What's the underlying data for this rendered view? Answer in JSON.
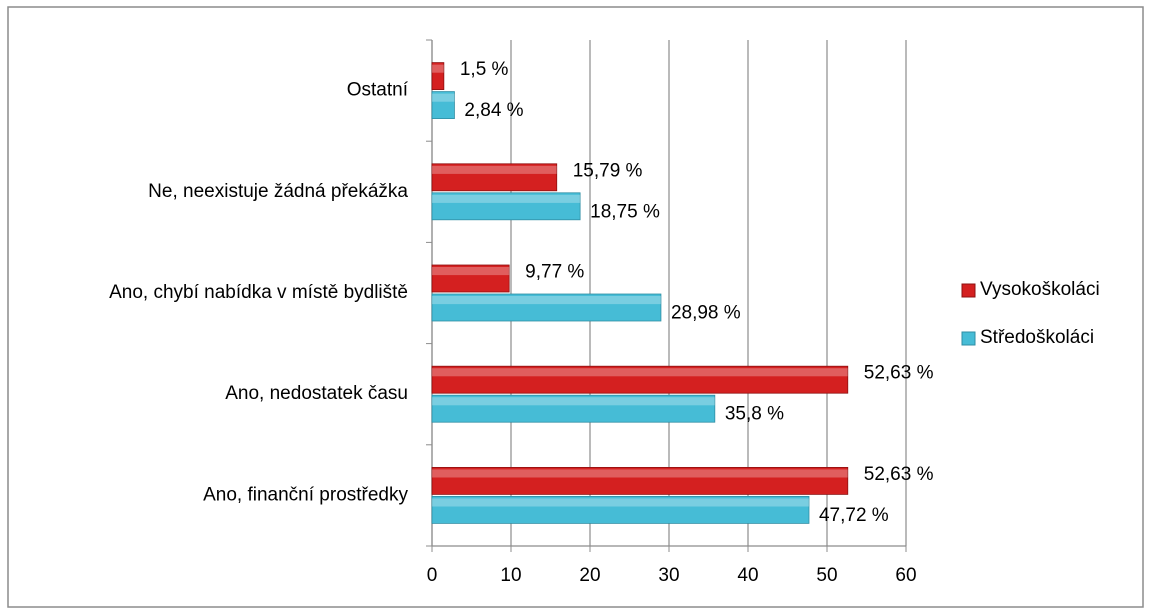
{
  "chart_data": {
    "type": "bar",
    "orientation": "horizontal",
    "categories": [
      "Ostatní",
      "Ne, neexistuje žádná překážka",
      "Ano, chybí nabídka v místě bydliště",
      "Ano, nedostatek času",
      "Ano, finanční prostředky"
    ],
    "series": [
      {
        "name": "Vysokoškoláci",
        "color": "#d42020",
        "values": [
          1.5,
          15.79,
          9.77,
          52.63,
          52.63
        ],
        "value_labels": [
          "1,5 %",
          "15,79 %",
          "9,77 %",
          "52,63 %",
          "52,63 %"
        ]
      },
      {
        "name": "Středoškoláci",
        "color": "#46bcd6",
        "values": [
          2.84,
          18.75,
          28.98,
          35.8,
          47.72
        ],
        "value_labels": [
          "2,84 %",
          "18,75 %",
          "28,98 %",
          "35,8 %",
          "47,72 %"
        ]
      }
    ],
    "xlim": [
      0,
      60
    ],
    "xticks": [
      0,
      10,
      20,
      30,
      40,
      50,
      60
    ],
    "grid": true,
    "legend": "right"
  }
}
